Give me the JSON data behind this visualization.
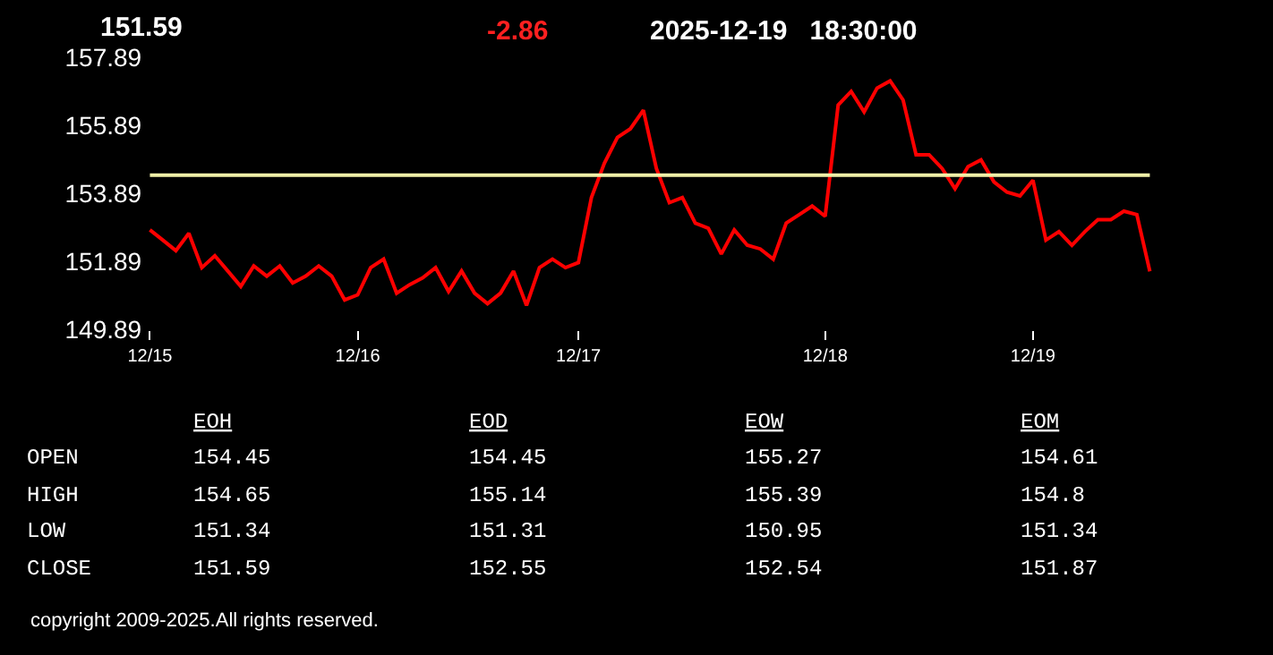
{
  "chart_data": {
    "type": "line",
    "categories": [
      "12/15",
      null,
      null,
      null,
      null,
      null,
      null,
      null,
      null,
      null,
      null,
      null,
      null,
      null,
      null,
      null,
      "12/16",
      null,
      null,
      null,
      null,
      null,
      null,
      null,
      null,
      null,
      null,
      null,
      null,
      null,
      null,
      null,
      null,
      "12/17",
      null,
      null,
      null,
      null,
      null,
      null,
      null,
      null,
      null,
      null,
      null,
      null,
      null,
      null,
      null,
      null,
      null,
      null,
      "12/18",
      null,
      null,
      null,
      null,
      null,
      null,
      null,
      null,
      null,
      null,
      null,
      null,
      null,
      null,
      null,
      "12/19",
      null,
      null,
      null,
      null,
      null,
      null,
      null,
      null,
      null
    ],
    "series": [
      {
        "color": "#ff0000",
        "values": [
          152.81,
          152.51,
          152.2,
          152.71,
          151.7,
          152.05,
          151.6,
          151.15,
          151.75,
          151.45,
          151.75,
          151.25,
          151.45,
          151.75,
          151.45,
          150.75,
          150.9,
          151.7,
          151.95,
          150.95,
          151.2,
          151.4,
          151.7,
          151.0,
          151.6,
          150.95,
          150.64,
          150.95,
          151.6,
          150.59,
          151.7,
          151.95,
          151.7,
          151.85,
          153.76,
          154.77,
          155.53,
          155.78,
          156.33,
          154.62,
          153.61,
          153.76,
          153.01,
          152.86,
          152.1,
          152.81,
          152.36,
          152.25,
          151.95,
          153.01,
          153.26,
          153.51,
          153.21,
          156.48,
          156.88,
          156.28,
          156.98,
          157.19,
          156.63,
          155.02,
          155.02,
          154.62,
          154.02,
          154.67,
          154.87,
          154.22,
          153.92,
          153.81,
          154.27,
          152.51,
          152.76,
          152.36,
          152.76,
          153.11,
          153.11,
          153.36,
          153.26,
          151.59
        ]
      }
    ],
    "ylim": [
      149.89,
      157.89
    ],
    "yticks": [
      149.89,
      151.89,
      153.89,
      155.89,
      157.89
    ],
    "ref_lines": [
      {
        "axis": "y",
        "value": 154.42,
        "color": "#f0f0a8"
      }
    ],
    "grid": false,
    "marker": "none",
    "line_style": "solid",
    "annotations": [
      "151.59",
      "-2.86",
      "2025-12-19   18:30:00",
      "EOH",
      "EOD",
      "EOW",
      "EOM",
      "OPEN",
      "HIGH",
      "LOW",
      "CLOSE",
      "154.45",
      "154.45",
      "155.27",
      "154.61",
      "154.65",
      "155.14",
      "155.39",
      "154.8",
      "151.34",
      "151.31",
      "150.95",
      "151.34",
      "151.59",
      "152.55",
      "152.54",
      "151.87",
      "copyright 2009-2025.All rights reserved."
    ]
  }
}
